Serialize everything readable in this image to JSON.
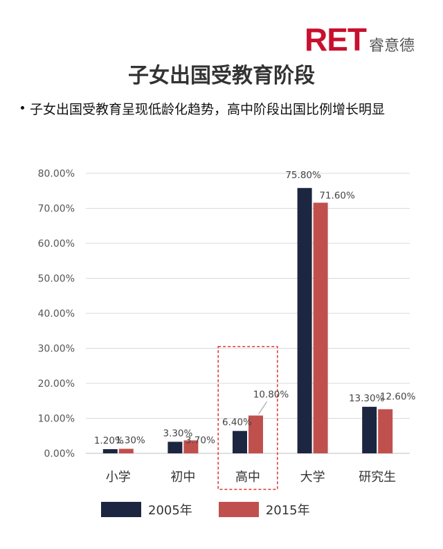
{
  "logo": {
    "mark": "RET",
    "name": "睿意德"
  },
  "title": "子女出国受教育阶段",
  "bullet": "子女出国受教育呈现低龄化趋势，高中阶段出国比例增长明显",
  "colors": {
    "series_2005": "#1c2641",
    "series_2015": "#c0504d",
    "highlight": "#e03030",
    "grid": "#d9d9d9"
  },
  "chart_data": {
    "type": "bar",
    "categories": [
      "小学",
      "初中",
      "高中",
      "大学",
      "研究生"
    ],
    "series": [
      {
        "name": "2005年",
        "values": [
          1.2,
          3.3,
          6.4,
          75.8,
          13.3
        ],
        "labels": [
          "1.20%",
          "3.30%",
          "6.40%",
          "75.80%",
          "13.30%"
        ]
      },
      {
        "name": "2015年",
        "values": [
          1.3,
          3.7,
          10.8,
          71.6,
          12.6
        ],
        "labels": [
          "1.30%",
          "3.70%",
          "10.80%",
          "71.60%",
          "12.60%"
        ]
      }
    ],
    "y_ticks": [
      "0.00%",
      "10.00%",
      "20.00%",
      "30.00%",
      "40.00%",
      "50.00%",
      "60.00%",
      "70.00%",
      "80.00%"
    ],
    "ylim": [
      0,
      80
    ],
    "grid": true,
    "legend_position": "bottom",
    "highlighted_category": "高中"
  }
}
